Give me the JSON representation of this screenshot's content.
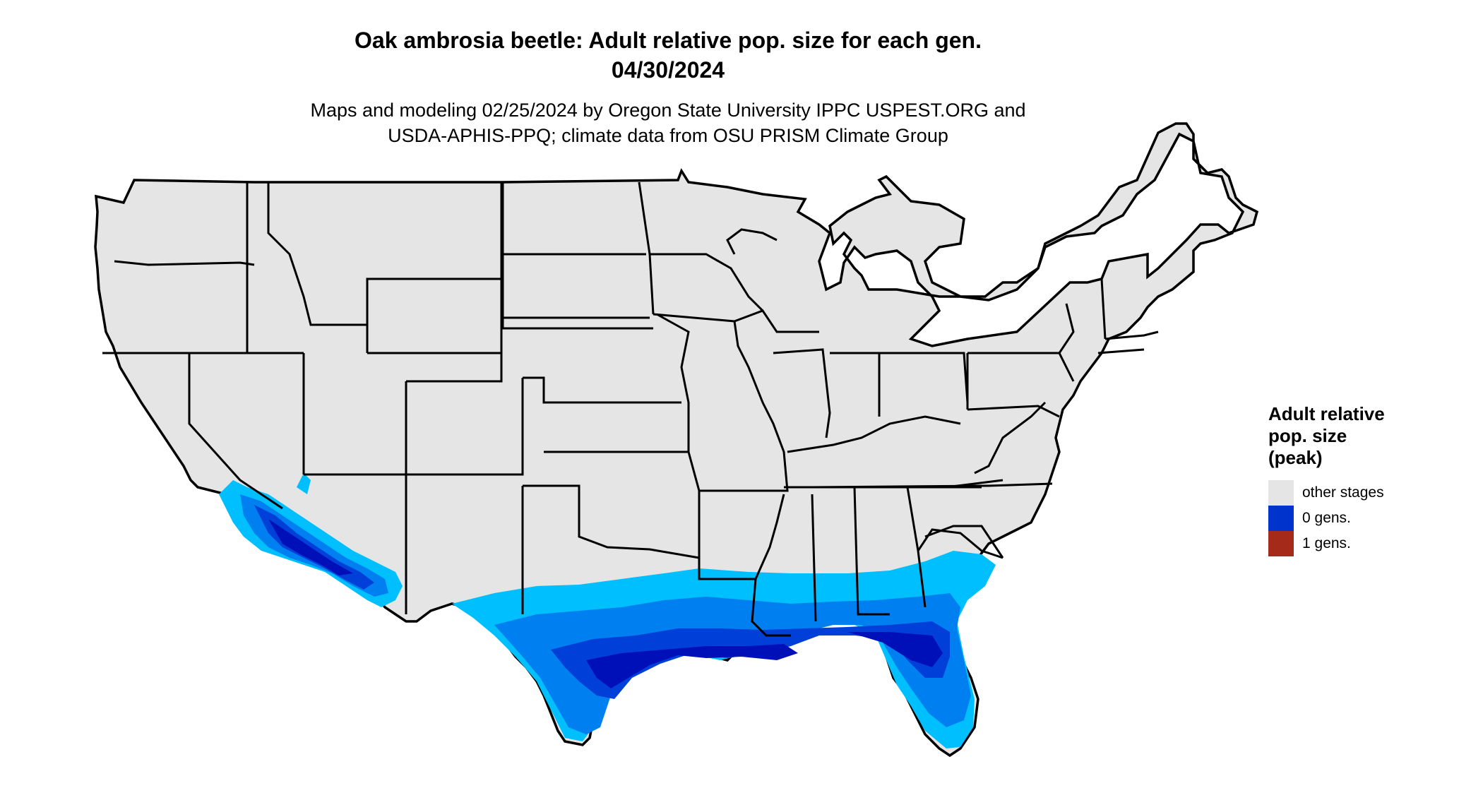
{
  "title": {
    "line1": "Oak ambrosia beetle: Adult relative pop. size for each gen.",
    "line2": "04/30/2024"
  },
  "subtitle": {
    "line1": "Maps and modeling 02/25/2024 by Oregon State University IPPC USPEST.ORG and",
    "line2": "USDA-APHIS-PPQ; climate data from OSU PRISM Climate Group"
  },
  "legend": {
    "title_lines": [
      "Adult relative",
      "pop. size",
      "(peak)"
    ],
    "items": [
      {
        "label": "other stages",
        "color": "#e5e5e5"
      },
      {
        "label": "0 gens.",
        "color": "#0033cc"
      },
      {
        "label": "1 gens.",
        "color": "#a52a1a"
      }
    ]
  },
  "map": {
    "background_fill": "#e5e5e5",
    "border_color": "#000000",
    "shading_colors": [
      "#00bfff",
      "#0080f0",
      "#0040d8",
      "#0010b8"
    ]
  }
}
